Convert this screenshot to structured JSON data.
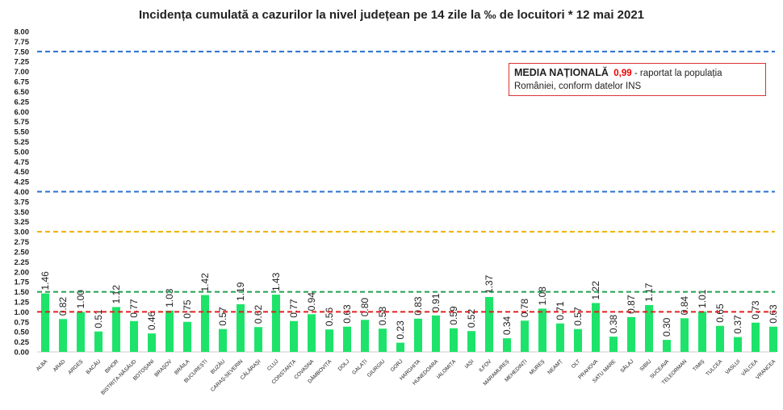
{
  "chart_data": {
    "type": "bar",
    "title": "Incidența cumulată a cazurilor la nivel județean pe 14 zile la ‰ de locuitori *  12 mai 2021",
    "categories": [
      "ALBA",
      "ARAD",
      "ARGEȘ",
      "BACĂU",
      "BIHOR",
      "BISTRIȚA-NĂSĂUD",
      "BOTOȘANI",
      "BRAȘOV",
      "BRĂILA",
      "BUCUREȘTI",
      "BUZĂU",
      "CARAȘ-SEVERIN",
      "CĂLĂRAȘI",
      "CLUJ",
      "CONSTANȚA",
      "COVASNA",
      "DÂMBOVIȚA",
      "DOLJ",
      "GALAȚI",
      "GIURGIU",
      "GORJ",
      "HARGHITA",
      "HUNEDOARA",
      "IALOMIȚA",
      "IAȘI",
      "ILFOV",
      "MARAMUREȘ",
      "MEHEDINȚI",
      "MUREȘ",
      "NEAMȚ",
      "OLT",
      "PRAHOVA",
      "SATU MARE",
      "SĂLAJ",
      "SIBIU",
      "SUCEAVA",
      "TELEORMAN",
      "TIMIȘ",
      "TULCEA",
      "VASLUI",
      "VÂLCEA",
      "VRANCEA"
    ],
    "values": [
      1.46,
      0.82,
      1.0,
      0.51,
      1.12,
      0.77,
      0.46,
      1.03,
      0.75,
      1.42,
      0.57,
      1.19,
      0.62,
      1.43,
      0.77,
      0.94,
      0.56,
      0.63,
      0.8,
      0.58,
      0.23,
      0.83,
      0.91,
      0.59,
      0.52,
      1.37,
      0.34,
      0.78,
      1.08,
      0.71,
      0.57,
      1.22,
      0.38,
      0.87,
      1.17,
      0.3,
      0.84,
      1.01,
      0.65,
      0.37,
      0.73,
      0.63
    ],
    "ylim": [
      0,
      8
    ],
    "ytick_step": 0.25,
    "bar_color": "#1ee36a",
    "reference_lines": [
      {
        "value": 1.0,
        "color": "#e02020"
      },
      {
        "value": 1.5,
        "color": "#22a050"
      },
      {
        "value": 3.0,
        "color": "#f0b000"
      },
      {
        "value": 4.0,
        "color": "#2a70d0"
      },
      {
        "value": 7.5,
        "color": "#2a70d0"
      }
    ],
    "grid": false
  },
  "note": {
    "label": "MEDIA NAȚIONALĂ",
    "value": "0,99",
    "text": " - raportat la populația României, conform datelor INS"
  }
}
